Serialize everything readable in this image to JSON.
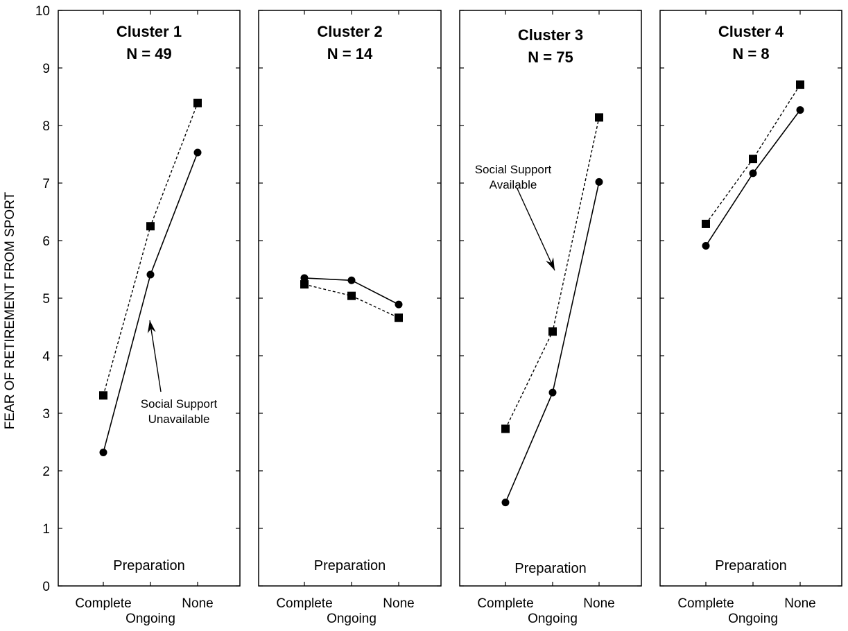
{
  "chart_data": {
    "type": "line",
    "ylabel": "FEAR OF RETIREMENT FROM SPORT",
    "ylim": [
      0,
      10
    ],
    "yticks": [
      0,
      1,
      2,
      3,
      4,
      5,
      6,
      7,
      8,
      9,
      10
    ],
    "x_categories": [
      "Complete",
      "Ongoing",
      "None"
    ],
    "grid": false,
    "panels": [
      {
        "title": "Cluster 1",
        "n_label": "N = 49",
        "xlabel": "Preparation",
        "series": [
          {
            "style": "solid-circle",
            "values": [
              2.32,
              5.41,
              7.53
            ]
          },
          {
            "style": "dashed-square",
            "values": [
              3.31,
              6.25,
              8.39
            ]
          }
        ],
        "annotation": {
          "lines": [
            "Social Support",
            "Unavailable"
          ]
        }
      },
      {
        "title": "Cluster 2",
        "n_label": "N = 14",
        "xlabel": "Preparation",
        "series": [
          {
            "style": "solid-circle",
            "values": [
              5.35,
              5.31,
              4.89
            ]
          },
          {
            "style": "dashed-square",
            "values": [
              5.24,
              5.04,
              4.66
            ]
          }
        ]
      },
      {
        "title": "Cluster 3",
        "n_label": "N = 75",
        "xlabel": "Preparation",
        "series": [
          {
            "style": "solid-circle",
            "values": [
              1.45,
              3.36,
              7.02
            ]
          },
          {
            "style": "dashed-square",
            "values": [
              2.73,
              4.42,
              8.14
            ]
          }
        ],
        "annotation": {
          "lines": [
            "Social Support",
            "Available"
          ]
        }
      },
      {
        "title": "Cluster 4",
        "n_label": "N = 8",
        "xlabel": "Preparation",
        "series": [
          {
            "style": "solid-circle",
            "values": [
              5.91,
              7.17,
              8.27
            ]
          },
          {
            "style": "dashed-square",
            "values": [
              6.29,
              7.42,
              8.71
            ]
          }
        ]
      }
    ]
  }
}
